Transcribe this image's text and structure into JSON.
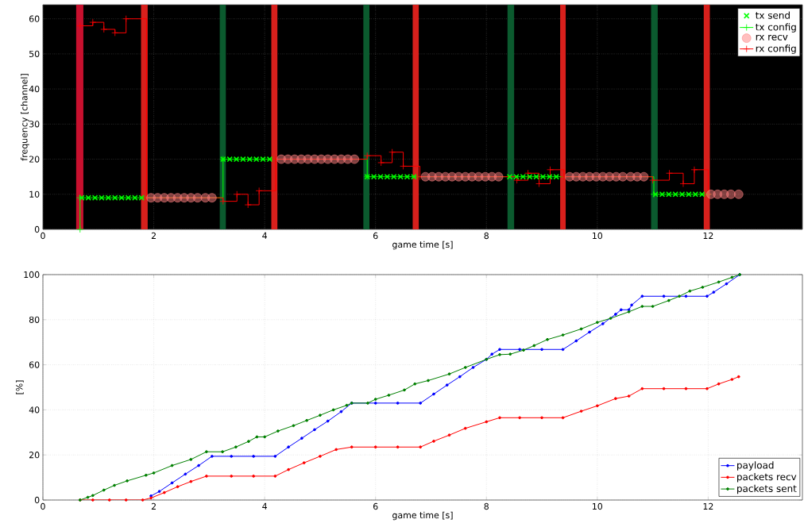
{
  "chart_data": [
    {
      "type": "scatter",
      "xlabel": "game time [s]",
      "ylabel": "frequency [channel]",
      "xlim": [
        0,
        13.7
      ],
      "ylim": [
        0,
        64
      ],
      "xticks": [
        0,
        2,
        4,
        6,
        8,
        10,
        12
      ],
      "yticks": [
        0,
        10,
        20,
        30,
        40,
        50,
        60
      ],
      "grid": true,
      "legend": "top right",
      "bands": [
        {
          "axis": "x",
          "from": 0.6,
          "to": 0.73,
          "color": "#c8102e"
        },
        {
          "axis": "x",
          "from": 1.77,
          "to": 1.89,
          "color": "#d8201c"
        },
        {
          "axis": "x",
          "from": 3.19,
          "to": 3.3,
          "color": "#0b5a2e"
        },
        {
          "axis": "x",
          "from": 4.12,
          "to": 4.23,
          "color": "#d8201c"
        },
        {
          "axis": "x",
          "from": 5.78,
          "to": 5.89,
          "color": "#0b5a2e"
        },
        {
          "axis": "x",
          "from": 6.67,
          "to": 6.78,
          "color": "#d8201c"
        },
        {
          "axis": "x",
          "from": 8.38,
          "to": 8.5,
          "color": "#0b5a2e"
        },
        {
          "axis": "x",
          "from": 9.33,
          "to": 9.43,
          "color": "#d8201c"
        },
        {
          "axis": "x",
          "from": 10.97,
          "to": 11.09,
          "color": "#0b5a2e"
        },
        {
          "axis": "x",
          "from": 11.92,
          "to": 12.03,
          "color": "#d8201c"
        }
      ],
      "series": [
        {
          "name": "tx send",
          "type": "scatter",
          "marker": "cross",
          "color": "#00ff00",
          "x": [
            0.7,
            0.82,
            0.94,
            1.06,
            1.18,
            1.3,
            1.42,
            1.54,
            1.66,
            1.78,
            3.25,
            3.37,
            3.49,
            3.61,
            3.73,
            3.85,
            3.97,
            4.09,
            5.85,
            5.97,
            6.09,
            6.21,
            6.33,
            6.45,
            6.57,
            6.69,
            8.42,
            8.54,
            8.66,
            8.78,
            8.9,
            9.02,
            9.14,
            9.26,
            11.05,
            11.17,
            11.29,
            11.41,
            11.53,
            11.65,
            11.77,
            11.89
          ],
          "values": [
            9,
            9,
            9,
            9,
            9,
            9,
            9,
            9,
            9,
            9,
            20,
            20,
            20,
            20,
            20,
            20,
            20,
            20,
            15,
            15,
            15,
            15,
            15,
            15,
            15,
            15,
            15,
            15,
            15,
            15,
            15,
            15,
            15,
            15,
            10,
            10,
            10,
            10,
            10,
            10,
            10,
            10
          ]
        },
        {
          "name": "tx config",
          "type": "step",
          "marker": "cross",
          "color": "#00ff00",
          "x": [
            0.67,
            0.67,
            3.25,
            5.85,
            11.02,
            12.0
          ],
          "values": [
            0,
            9,
            20,
            15,
            10,
            10
          ]
        },
        {
          "name": "rx recv",
          "type": "scatter",
          "marker": "circle",
          "color": "#ff8080",
          "x": [
            1.95,
            2.07,
            2.19,
            2.31,
            2.43,
            2.55,
            2.67,
            2.79,
            2.93,
            3.05,
            4.3,
            4.42,
            4.54,
            4.66,
            4.78,
            4.9,
            5.02,
            5.14,
            5.26,
            5.38,
            5.5,
            5.62,
            6.9,
            7.02,
            7.14,
            7.26,
            7.38,
            7.5,
            7.62,
            7.74,
            7.86,
            7.98,
            8.1,
            8.22,
            9.5,
            9.62,
            9.74,
            9.86,
            9.98,
            10.1,
            10.22,
            10.34,
            10.46,
            10.6,
            10.72,
            10.84,
            12.05,
            12.17,
            12.29,
            12.41,
            12.55
          ],
          "values": [
            9,
            9,
            9,
            9,
            9,
            9,
            9,
            9,
            9,
            9,
            20,
            20,
            20,
            20,
            20,
            20,
            20,
            20,
            20,
            20,
            20,
            20,
            15,
            15,
            15,
            15,
            15,
            15,
            15,
            15,
            15,
            15,
            15,
            15,
            15,
            15,
            15,
            15,
            15,
            15,
            15,
            15,
            15,
            15,
            15,
            15,
            10,
            10,
            10,
            10,
            10
          ]
        },
        {
          "name": "rx config",
          "type": "step",
          "marker": "cross",
          "color": "#ff0000",
          "x": [
            0.67,
            0.9,
            1.1,
            1.3,
            1.5,
            1.87,
            3.25,
            3.5,
            3.7,
            3.9,
            4.2,
            5.85,
            6.1,
            6.3,
            6.5,
            6.8,
            8.55,
            8.75,
            8.95,
            9.15,
            9.4,
            11.0,
            11.3,
            11.55,
            11.75,
            12.0
          ],
          "values": [
            58,
            59,
            57,
            56,
            60,
            9,
            8,
            10,
            7,
            11,
            20,
            21,
            19,
            22,
            18,
            15,
            14,
            16,
            13,
            17,
            15,
            14,
            16,
            13,
            17,
            10
          ]
        }
      ]
    },
    {
      "type": "line",
      "xlabel": "game time [s]",
      "ylabel": "[%]",
      "xlim": [
        0,
        13.7
      ],
      "ylim": [
        0,
        100
      ],
      "xticks": [
        0,
        2,
        4,
        6,
        8,
        10,
        12
      ],
      "yticks": [
        0,
        20,
        40,
        60,
        80,
        100
      ],
      "grid": true,
      "legend": "bottom right",
      "marker": "circle",
      "series": [
        {
          "name": "payload",
          "color": "#0000ff",
          "x": [
            1.95,
            2.1,
            2.33,
            2.57,
            2.81,
            3.05,
            3.4,
            3.8,
            4.19,
            4.43,
            4.67,
            4.9,
            5.14,
            5.38,
            5.57,
            6.0,
            6.4,
            6.81,
            7.05,
            7.29,
            7.52,
            7.76,
            8.0,
            8.1,
            8.24,
            8.6,
            9.0,
            9.38,
            9.62,
            9.86,
            10.1,
            10.33,
            10.43,
            10.57,
            10.62,
            10.81,
            11.2,
            11.6,
            11.98,
            12.1,
            12.33,
            12.57
          ],
          "values": [
            1.8,
            3.8,
            7.6,
            11.5,
            15.3,
            19.4,
            19.4,
            19.4,
            19.4,
            23.5,
            27.4,
            31.2,
            35,
            39.2,
            43,
            43,
            43,
            43,
            47,
            51,
            54.7,
            58.8,
            62.4,
            64.7,
            66.8,
            66.8,
            66.8,
            66.8,
            70.6,
            74.5,
            78.2,
            82.4,
            84.4,
            84.4,
            86.5,
            90.4,
            90.4,
            90.4,
            90.4,
            92.2,
            95.9,
            100
          ]
        },
        {
          "name": "packets recv",
          "color": "#ff0000",
          "x": [
            0.67,
            0.9,
            1.2,
            1.5,
            1.8,
            1.95,
            2.19,
            2.43,
            2.67,
            2.95,
            3.4,
            3.8,
            4.19,
            4.43,
            4.71,
            5.0,
            5.29,
            5.57,
            6.0,
            6.4,
            6.81,
            7.05,
            7.33,
            7.62,
            8.0,
            8.24,
            8.6,
            9.0,
            9.38,
            9.71,
            10.0,
            10.33,
            10.57,
            10.81,
            11.2,
            11.6,
            11.98,
            12.19,
            12.43,
            12.55
          ],
          "values": [
            0,
            0,
            0,
            0,
            0,
            0.9,
            3.3,
            5.9,
            8.2,
            10.6,
            10.6,
            10.6,
            10.6,
            13.5,
            16.5,
            19.4,
            22.4,
            23.5,
            23.5,
            23.5,
            23.5,
            26.1,
            28.8,
            31.8,
            34.7,
            36.5,
            36.5,
            36.5,
            36.5,
            39.4,
            41.8,
            45,
            46.1,
            49.4,
            49.4,
            49.4,
            49.4,
            51.5,
            53.5,
            54.7
          ]
        },
        {
          "name": "packets sent",
          "color": "#008000",
          "x": [
            0.67,
            0.81,
            0.9,
            1.1,
            1.29,
            1.52,
            1.86,
            2.0,
            2.33,
            2.67,
            2.95,
            3.24,
            3.48,
            3.71,
            3.86,
            4.0,
            4.24,
            4.52,
            4.76,
            5.0,
            5.24,
            5.48,
            5.57,
            5.86,
            6.0,
            6.24,
            6.52,
            6.71,
            6.95,
            7.33,
            7.62,
            8.0,
            8.24,
            8.43,
            8.67,
            8.86,
            9.1,
            9.38,
            9.71,
            10.0,
            10.24,
            10.57,
            10.81,
            11.0,
            11.29,
            11.48,
            11.67,
            11.9,
            12.19,
            12.43,
            12.57
          ],
          "values": [
            0,
            1.2,
            2,
            4.4,
            6.5,
            8.5,
            11,
            12,
            15.3,
            18,
            21.4,
            21.4,
            23.5,
            26,
            28,
            28,
            30.6,
            33,
            35.3,
            37.6,
            40,
            42,
            43,
            43,
            44.7,
            46.5,
            48.8,
            51.5,
            53,
            55.9,
            58.8,
            62.4,
            64.5,
            64.7,
            66.5,
            68.5,
            71.2,
            73.2,
            75.9,
            78.8,
            80.6,
            83.5,
            85.9,
            85.9,
            88.5,
            90.4,
            92.7,
            94.4,
            96.7,
            98.8,
            100
          ]
        }
      ]
    }
  ]
}
